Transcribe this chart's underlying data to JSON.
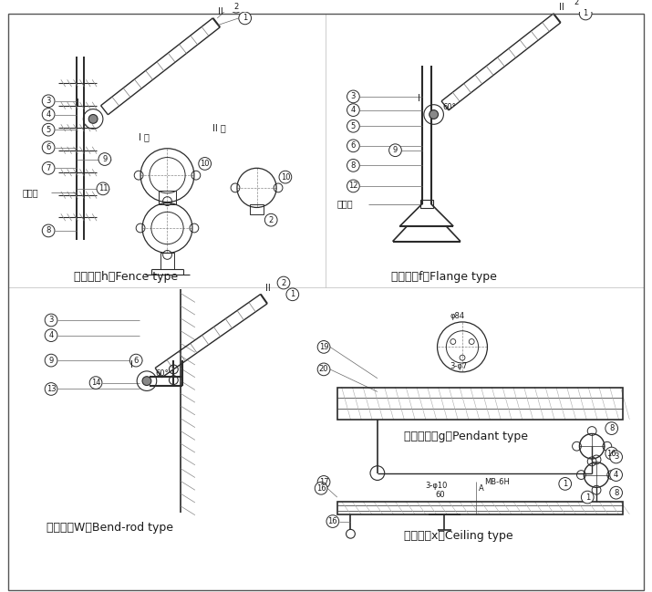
{
  "bg_color": "#ffffff",
  "line_color": "#2a2a2a",
  "text_color": "#1a1a1a",
  "grid_color": "#cccccc",
  "label_fence": "护栏式（h）Fence type",
  "label_flange": "法兰式（f）Flange type",
  "label_bend": "弯杆式（W）Bend-rod type",
  "label_pendant": "吸鶉杆式（g）Pendant type",
  "label_ceiling": "吸顶式（x）Ceiling type",
  "wai_jie_di": "外接地",
  "I_chu": "I 处",
  "II_chu": "II 处",
  "phi84": "φ84",
  "phi7": "3-φ7",
  "phi10": "3-φ10",
  "mb6h": "MB-6H",
  "sixty": "60"
}
